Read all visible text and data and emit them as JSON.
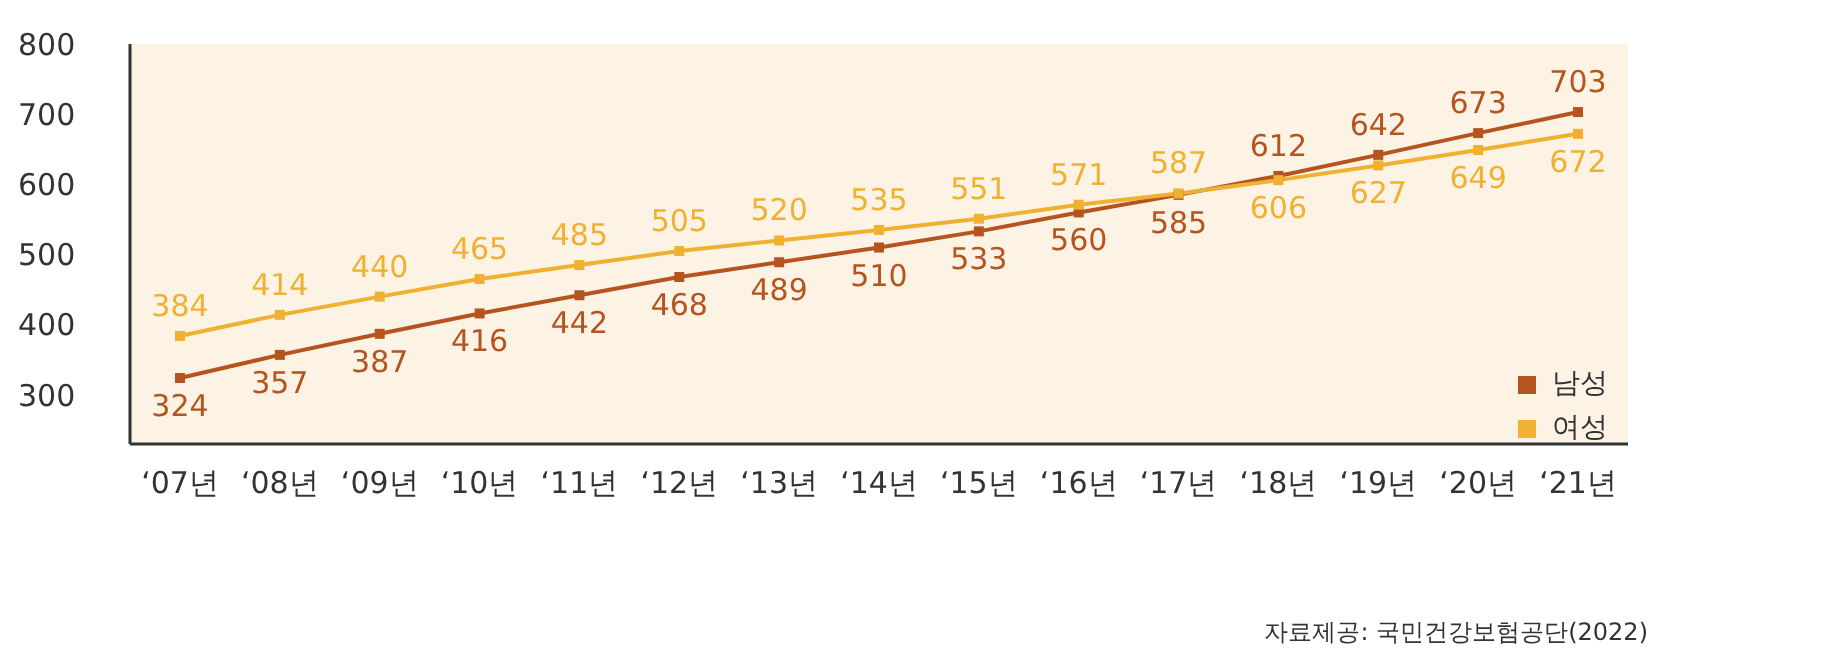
{
  "chart_data": {
    "type": "line",
    "categories": [
      "‘07년",
      "‘08년",
      "‘09년",
      "‘10년",
      "‘11년",
      "‘12년",
      "‘13년",
      "‘14년",
      "‘15년",
      "‘16년",
      "‘17년",
      "‘18년",
      "‘19년",
      "‘20년",
      "‘21년"
    ],
    "series": [
      {
        "name": "남성",
        "color": "#b5541e",
        "values": [
          324,
          357,
          387,
          416,
          442,
          468,
          489,
          510,
          533,
          560,
          585,
          612,
          642,
          673,
          703
        ]
      },
      {
        "name": "여성",
        "color": "#f0b132",
        "values": [
          384,
          414,
          440,
          465,
          485,
          505,
          520,
          535,
          551,
          571,
          587,
          606,
          627,
          649,
          672
        ]
      }
    ],
    "ylim": [
      230,
      800
    ],
    "yticks": [
      300,
      400,
      500,
      600,
      700,
      800
    ],
    "grid": false,
    "legend": "bottom right",
    "marker": "square",
    "line_style": "solid",
    "data_labels": true,
    "annotations": [
      "자료제공: 국민건강보험공단(2022)"
    ]
  }
}
